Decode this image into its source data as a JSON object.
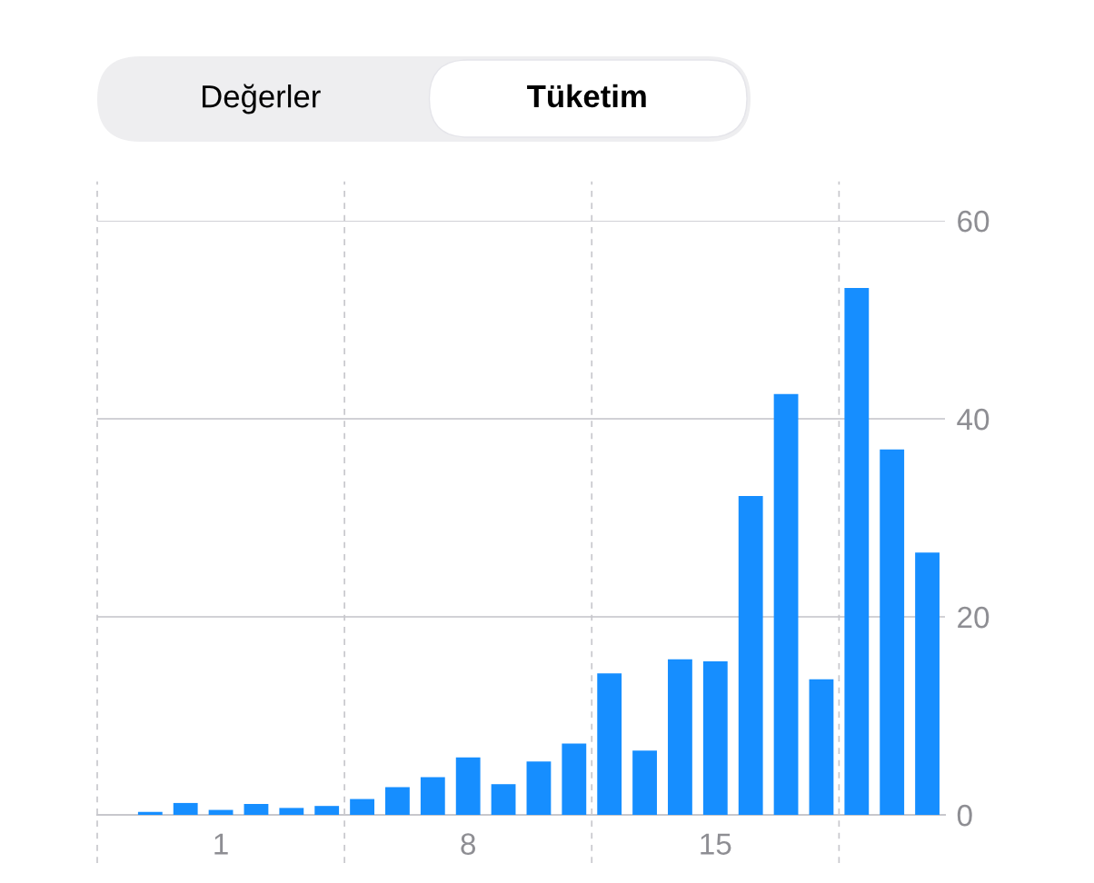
{
  "chart_data": {
    "type": "bar",
    "annotations": [
      "Değerler",
      "Tüketim"
    ],
    "categories": [
      null,
      null,
      null,
      "1",
      null,
      null,
      null,
      null,
      null,
      null,
      "8",
      null,
      null,
      null,
      null,
      null,
      null,
      "15",
      null,
      null,
      null,
      null,
      null,
      null
    ],
    "values": [
      null,
      0.3,
      1.2,
      0.5,
      1.1,
      0.7,
      0.9,
      1.6,
      2.8,
      3.8,
      5.8,
      3.1,
      5.4,
      7.2,
      14.3,
      6.5,
      15.7,
      15.5,
      32.2,
      42.5,
      13.7,
      53.2,
      36.9,
      26.5
    ],
    "color": "#168eff",
    "ylim": [
      0,
      60
    ],
    "yticks": [
      0,
      20,
      40,
      60
    ],
    "grid": "y"
  }
}
